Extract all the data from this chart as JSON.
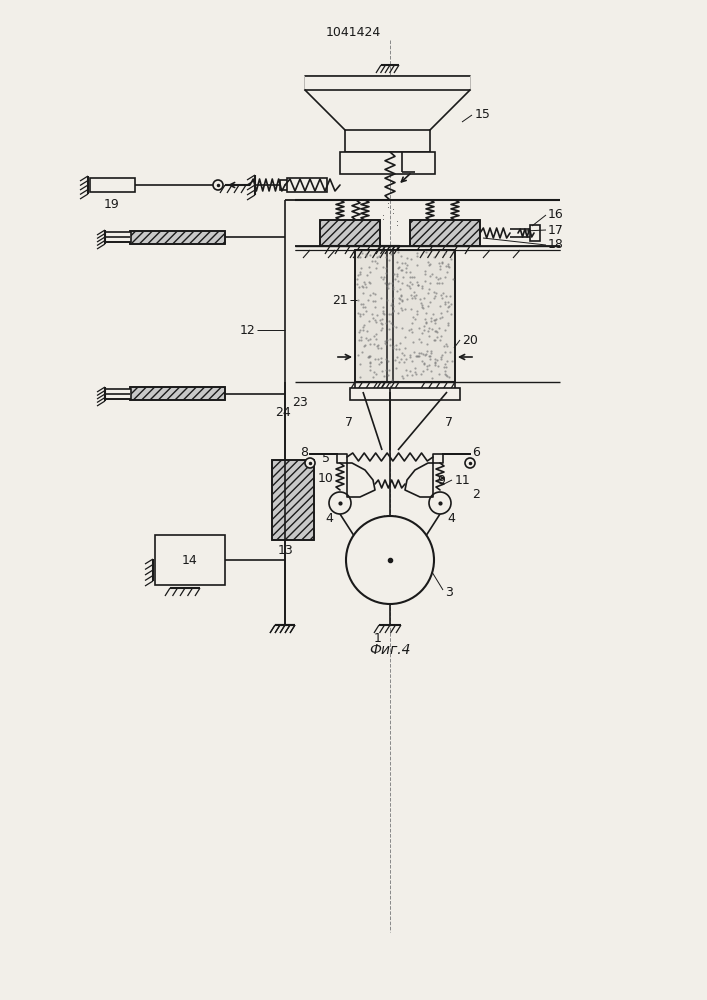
{
  "title": "1041424",
  "caption": "Фиг.4",
  "bg_color": "#f2efe9",
  "line_color": "#1a1a1a",
  "figsize": [
    7.07,
    10.0
  ],
  "dpi": 100
}
